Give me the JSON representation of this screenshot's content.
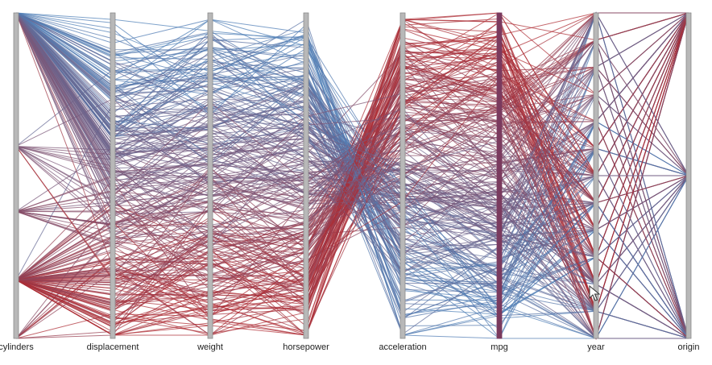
{
  "chart_data": {
    "type": "parallel_coordinates",
    "dimensions": [
      "cylinders",
      "displacement",
      "weight",
      "horsepower",
      "acceleration",
      "mpg",
      "year",
      "origin"
    ],
    "color_by": "mpg",
    "color_scale": {
      "low": "#4c7fb8",
      "high": "#b02a30"
    },
    "grid": false,
    "legend": "none",
    "highlighted_axis": "mpg",
    "cursor_near_axis": "year"
  },
  "colors": {
    "axis": "#b8b8b8",
    "axis_border": "#8a8a8a",
    "mpg_axis": "#7a3a5e",
    "label": "#222222"
  }
}
